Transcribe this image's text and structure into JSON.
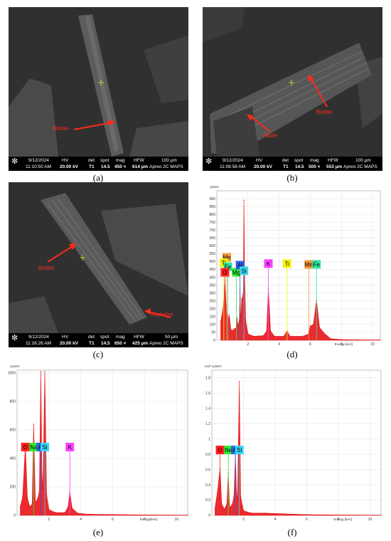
{
  "captions": [
    "(a)",
    "(b)",
    "(c)",
    "(d)",
    "(e)",
    "(f)"
  ],
  "sem_images": [
    {
      "date": "9/12/2024",
      "time": "11:10:50 AM",
      "hv_label": "HV",
      "hv": "20.00 kV",
      "det_label": "det",
      "det": "T1",
      "spot_label": "spot",
      "spot": "14.5",
      "mag_label": "mag",
      "mag": "450 ×",
      "hfw_label": "HFW",
      "hfw": "614 µm",
      "scale": "100 µm",
      "instrument": "Apreo 2C MAPS",
      "labels": [
        "Biotite"
      ]
    },
    {
      "date": "9/12/2024",
      "time": "11:06:58 AM",
      "hv_label": "HV",
      "hv": "20.00 kV",
      "det_label": "det",
      "det": "T1",
      "spot_label": "spot",
      "spot": "14.5",
      "mag_label": "mag",
      "mag": "500 ×",
      "hfw_label": "HFW",
      "hfw": "553 µm",
      "scale": "100 µm",
      "instrument": "Apreo 2C MAPS",
      "labels": [
        "Biotite",
        "Albite"
      ]
    },
    {
      "date": "9/12/2024",
      "time": "11:16:26 AM",
      "hv_label": "HV",
      "hv": "20.00 kV",
      "det_label": "det",
      "det": "T1",
      "spot_label": "spot",
      "spot": "14.5",
      "mag_label": "mag",
      "mag": "650 ×",
      "hfw_label": "HFW",
      "hfw": "425 µm",
      "scale": "50 µm",
      "instrument": "Apreo 2C MAPS",
      "labels": [
        "Biotite",
        "Nepheline"
      ]
    }
  ],
  "colors": {
    "spectrum": "#e8141a",
    "sem_bg": "#303030",
    "label_red": "#ff2a1a"
  },
  "chart_data": [
    {
      "type": "area",
      "panel": "d",
      "ylabel": "cps/ev",
      "xlabel": "Energy [keV]",
      "xlim": [
        0,
        10.5
      ],
      "ylim": [
        0,
        950
      ],
      "xticks": [
        2,
        4,
        6,
        8,
        10
      ],
      "yticks": [
        0,
        50,
        100,
        150,
        200,
        250,
        300,
        350,
        400,
        450,
        500,
        550,
        600,
        650,
        700,
        750,
        800,
        850,
        900
      ],
      "x": [
        0.25,
        0.4,
        0.52,
        0.6,
        0.7,
        0.8,
        0.9,
        1.0,
        1.1,
        1.25,
        1.3,
        1.35,
        1.45,
        1.49,
        1.53,
        1.6,
        1.7,
        1.74,
        1.78,
        1.85,
        2.0,
        2.4,
        3.0,
        3.2,
        3.31,
        3.45,
        3.7,
        4.3,
        4.51,
        4.7,
        5.5,
        5.9,
        6.0,
        6.2,
        6.4,
        6.6,
        6.9,
        7.06,
        7.3,
        8.0,
        9.0,
        10.5
      ],
      "y": [
        120,
        200,
        380,
        220,
        130,
        160,
        70,
        60,
        70,
        80,
        140,
        90,
        130,
        330,
        120,
        260,
        300,
        890,
        450,
        130,
        40,
        25,
        30,
        60,
        330,
        60,
        25,
        25,
        60,
        25,
        25,
        40,
        90,
        100,
        255,
        80,
        45,
        30,
        10,
        5,
        3,
        2
      ],
      "peak_labels": [
        {
          "label": "Mn",
          "energy": 0.64,
          "y": 500,
          "color": "#f39a3b"
        },
        {
          "label": "Ti",
          "energy": 0.45,
          "y": 465,
          "color": "#f5f50a"
        },
        {
          "label": "Fe",
          "energy": 0.71,
          "y": 440,
          "color": "#30e6a0"
        },
        {
          "label": "O",
          "energy": 0.52,
          "y": 405,
          "color": "#ff2020"
        },
        {
          "label": "Mg",
          "energy": 1.25,
          "y": 405,
          "color": "#30ee30"
        },
        {
          "label": "Al",
          "energy": 1.49,
          "y": 450,
          "color": "#2d5fe6"
        },
        {
          "label": "Si",
          "energy": 1.74,
          "y": 415,
          "color": "#37d6f5"
        },
        {
          "label": "K",
          "energy": 3.31,
          "y": 460,
          "color": "#ff40ff"
        },
        {
          "label": "Ti",
          "energy": 4.51,
          "y": 460,
          "color": "#f5f50a"
        },
        {
          "label": "Mn",
          "energy": 5.9,
          "y": 455,
          "color": "#f39a3b"
        },
        {
          "label": "Fe",
          "energy": 6.4,
          "y": 455,
          "color": "#30e6a0"
        }
      ]
    },
    {
      "type": "area",
      "panel": "e",
      "ylabel": "cps/eV",
      "xlabel": "Energy[keV]",
      "xlim": [
        0,
        10.7
      ],
      "ylim": [
        0,
        1020
      ],
      "xticks": [
        2,
        4,
        6,
        8,
        10
      ],
      "yticks": [
        0,
        200,
        400,
        600,
        800,
        1000
      ],
      "x": [
        0.2,
        0.35,
        0.52,
        0.65,
        0.8,
        0.95,
        1.04,
        1.15,
        1.3,
        1.4,
        1.49,
        1.56,
        1.62,
        1.74,
        1.85,
        2.0,
        2.4,
        3.0,
        3.2,
        3.31,
        3.45,
        3.8,
        4.5,
        6.0,
        8.0,
        10.7
      ],
      "y": [
        60,
        130,
        490,
        120,
        60,
        80,
        640,
        90,
        120,
        170,
        1010,
        300,
        180,
        1010,
        150,
        40,
        20,
        20,
        60,
        165,
        50,
        15,
        8,
        6,
        3,
        2
      ],
      "peak_labels": [
        {
          "label": "O",
          "energy": 0.52,
          "y": 450,
          "color": "#ff2020"
        },
        {
          "label": "Na",
          "energy": 1.04,
          "y": 450,
          "color": "#30ee30"
        },
        {
          "label": "Al",
          "energy": 1.49,
          "y": 450,
          "color": "#2d5fe6"
        },
        {
          "label": "Si",
          "energy": 1.74,
          "y": 450,
          "color": "#37d6f5"
        },
        {
          "label": "K",
          "energy": 3.31,
          "y": 450,
          "color": "#ff40ff"
        }
      ]
    },
    {
      "type": "area",
      "panel": "f",
      "ylabel": "x10³ cps/eV",
      "xlabel": "Energy [keV]",
      "xlim": [
        0,
        10.7
      ],
      "ylim": [
        0,
        1.9
      ],
      "xticks": [
        2,
        4,
        6,
        8,
        10
      ],
      "yticks": [
        0,
        0.2,
        0.4,
        0.6,
        0.8,
        1.0,
        1.2,
        1.4,
        1.6,
        1.8
      ],
      "x": [
        0.2,
        0.35,
        0.52,
        0.62,
        0.8,
        0.95,
        1.04,
        1.12,
        1.3,
        1.4,
        1.49,
        1.56,
        1.62,
        1.74,
        1.82,
        2.0,
        2.5,
        3.3,
        4.5,
        6.0,
        8.0,
        10.7
      ],
      "y": [
        0.1,
        0.3,
        0.62,
        0.15,
        0.08,
        0.15,
        0.56,
        0.1,
        0.15,
        0.25,
        0.78,
        0.3,
        0.2,
        1.75,
        0.25,
        0.06,
        0.03,
        0.03,
        0.02,
        0.01,
        0.005,
        0.003
      ],
      "peak_labels": [
        {
          "label": "O",
          "energy": 0.52,
          "y": 0.8,
          "color": "#ff2020"
        },
        {
          "label": "Na",
          "energy": 1.04,
          "y": 0.8,
          "color": "#30ee30"
        },
        {
          "label": "Al",
          "energy": 1.49,
          "y": 0.8,
          "color": "#2d5fe6"
        },
        {
          "label": "Si",
          "energy": 1.74,
          "y": 0.8,
          "color": "#37d6f5"
        }
      ]
    }
  ]
}
